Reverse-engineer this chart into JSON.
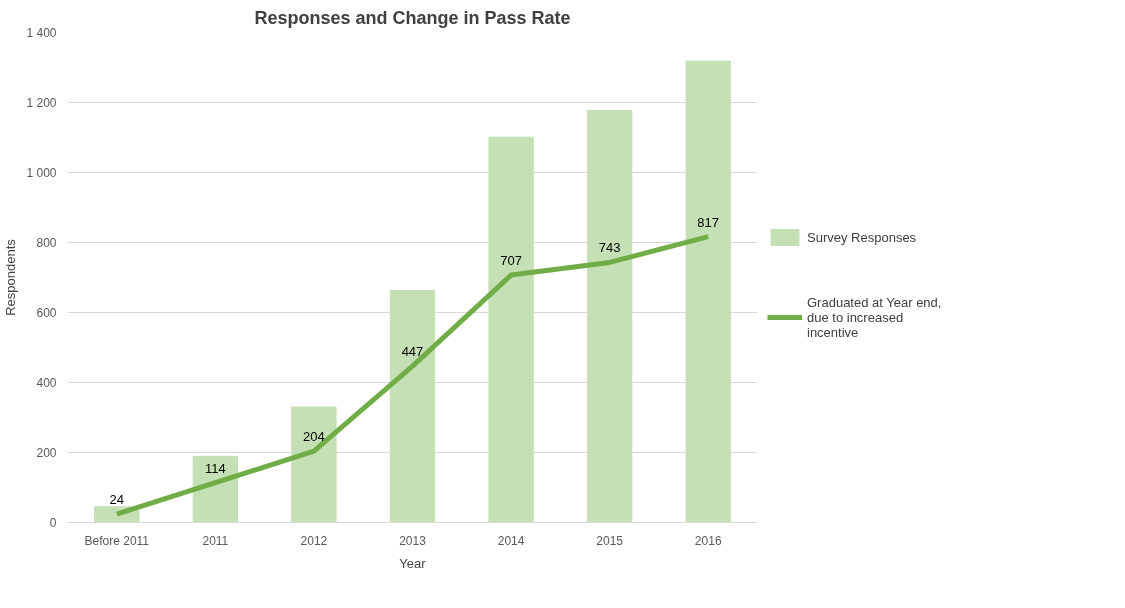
{
  "chart_data": {
    "type": "bar",
    "title": "Responses and Change in Pass Rate",
    "xlabel": "Year",
    "ylabel": "Respondents",
    "categories": [
      "Before 2011",
      "2011",
      "2012",
      "2013",
      "2014",
      "2015",
      "2016"
    ],
    "series": [
      {
        "name": "Survey Responses",
        "color": "#c5e0b4",
        "values": [
          45,
          189,
          330,
          663,
          1101,
          1177,
          1318
        ]
      },
      {
        "name": "Graduated at Year end, due to increased incentive",
        "type": "line",
        "color": "#70ad47",
        "values": [
          24,
          114,
          204,
          447,
          707,
          743,
          817
        ],
        "value_labels": [
          "24",
          "114",
          "204",
          "447",
          "707",
          "743",
          "817"
        ]
      }
    ],
    "ylim": [
      0,
      1400
    ],
    "yticks": [
      0,
      200,
      400,
      600,
      800,
      {
        "value": 1000,
        "label": "1 000"
      },
      {
        "value": 1200,
        "label": "1 200"
      },
      {
        "value": 1400,
        "label": "1 400"
      }
    ],
    "grid": "y",
    "legend": "right",
    "marker": "none",
    "line_style": "solid"
  }
}
